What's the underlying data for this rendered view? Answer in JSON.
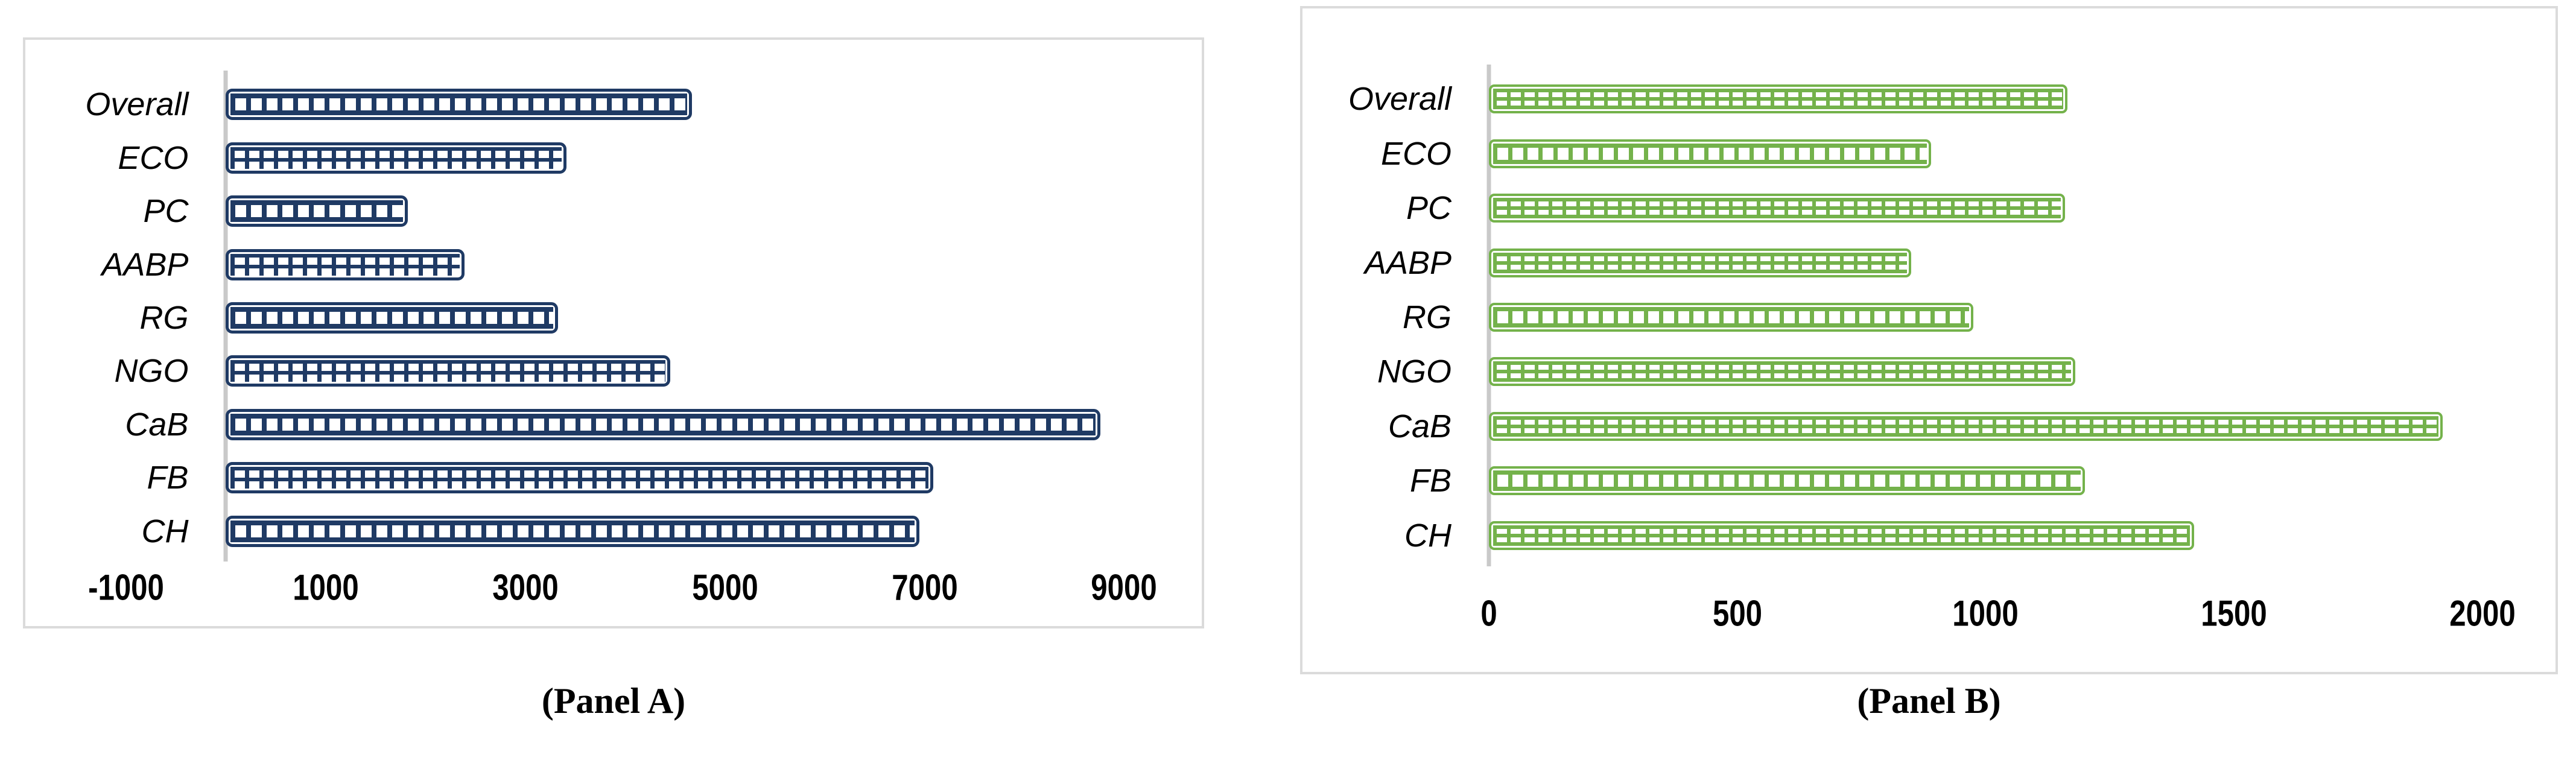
{
  "figure": {
    "description": "Two-panel horizontal bar figure",
    "panel_a_caption": "(Panel A)",
    "panel_b_caption": "(Panel B)"
  },
  "styles": {
    "panel_border_color": "#DBDBDB",
    "axis_line_color": "#C9C9C9",
    "text_color": "#000000",
    "background": "#ffffff"
  },
  "chart_data": [
    {
      "type": "bar",
      "orientation": "horizontal",
      "panel": "A",
      "caption": "(Panel A)",
      "categories": [
        "Overall",
        "ECO",
        "PC",
        "AABP",
        "RG",
        "NGO",
        "CaB",
        "FB",
        "CH"
      ],
      "values": [
        4670,
        3410,
        1820,
        2390,
        3330,
        4450,
        8760,
        7090,
        6950
      ],
      "xlim": [
        -1000,
        9680
      ],
      "xticks": [
        -1000,
        1000,
        3000,
        5000,
        7000,
        9000
      ],
      "xtick_labels": [
        "-1000",
        "1000",
        "3000",
        "5000",
        "7000",
        "9000"
      ],
      "bar_color": "#1F3A64",
      "bar_fill": "pattern-crosshatch-outline",
      "patterns": [
        "ladder",
        "grid",
        "ladder",
        "grid",
        "ladder",
        "grid",
        "ladder",
        "grid",
        "ladder"
      ],
      "grid": false,
      "legend": null
    },
    {
      "type": "bar",
      "orientation": "horizontal",
      "panel": "B",
      "caption": "(Panel B)",
      "categories": [
        "Overall",
        "ECO",
        "PC",
        "AABP",
        "RG",
        "NGO",
        "CaB",
        "FB",
        "CH"
      ],
      "values": [
        1165,
        890,
        1160,
        850,
        975,
        1180,
        1920,
        1200,
        1420
      ],
      "xlim": [
        0,
        2090
      ],
      "xticks": [
        0,
        500,
        1000,
        1500,
        2000
      ],
      "xtick_labels": [
        "0",
        "500",
        "1000",
        "1500",
        "2000"
      ],
      "bar_color": "#74B24B",
      "bar_fill": "pattern-crosshatch-outline",
      "patterns": [
        "grid",
        "ladder",
        "grid",
        "grid",
        "ladder",
        "grid",
        "grid",
        "ladder",
        "grid"
      ],
      "grid": false,
      "legend": null
    }
  ]
}
